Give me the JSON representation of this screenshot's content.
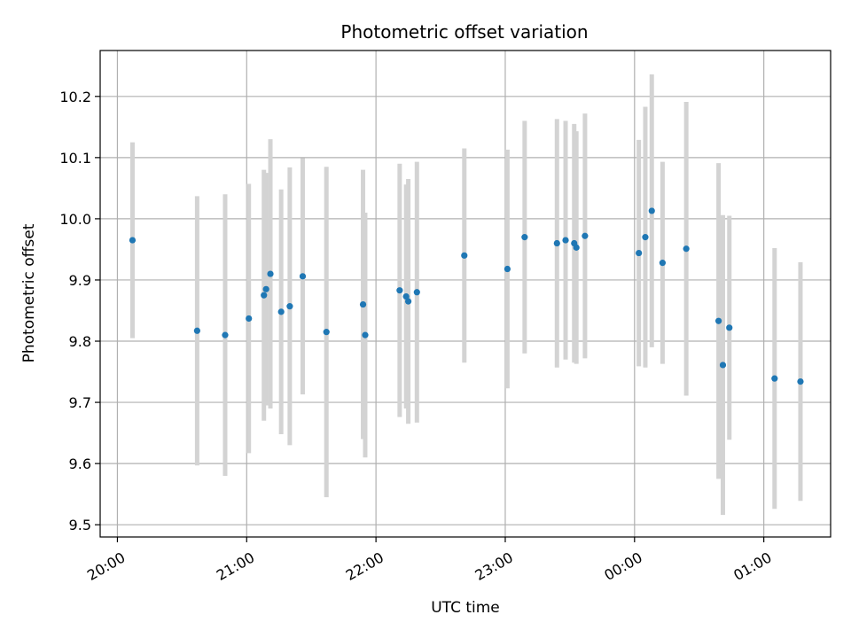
{
  "chart_data": {
    "type": "scatter",
    "title": "Photometric offset variation",
    "xlabel": "UTC time",
    "ylabel": "Photometric offset",
    "x_axis_kind": "time",
    "xlim": [
      "19:52",
      "01:31"
    ],
    "ylim": [
      9.48,
      10.275
    ],
    "grid": true,
    "x_ticks": [
      "20:00",
      "21:00",
      "22:00",
      "23:00",
      "00:00",
      "01:00"
    ],
    "y_ticks": [
      "9.5",
      "9.6",
      "9.7",
      "9.8",
      "9.9",
      "10.0",
      "10.1",
      "10.2"
    ],
    "colors": {
      "point": "#1f77b4",
      "errorbar": "#d3d3d3",
      "grid": "#b0b0b0"
    },
    "points": [
      {
        "x": "20:07",
        "y": 9.965,
        "yerr": 0.16
      },
      {
        "x": "20:37",
        "y": 9.817,
        "yerr": 0.22
      },
      {
        "x": "20:50",
        "y": 9.81,
        "yerr": 0.23
      },
      {
        "x": "21:01",
        "y": 9.837,
        "yerr": 0.22
      },
      {
        "x": "21:08",
        "y": 9.875,
        "yerr": 0.205
      },
      {
        "x": "21:09",
        "y": 9.885,
        "yerr": 0.19
      },
      {
        "x": "21:11",
        "y": 9.91,
        "yerr": 0.22
      },
      {
        "x": "21:16",
        "y": 9.848,
        "yerr": 0.2
      },
      {
        "x": "21:20",
        "y": 9.857,
        "yerr": 0.227
      },
      {
        "x": "21:26",
        "y": 9.906,
        "yerr": 0.193
      },
      {
        "x": "21:37",
        "y": 9.815,
        "yerr": 0.27
      },
      {
        "x": "21:54",
        "y": 9.86,
        "yerr": 0.22
      },
      {
        "x": "21:55",
        "y": 9.81,
        "yerr": 0.2
      },
      {
        "x": "22:11",
        "y": 9.883,
        "yerr": 0.207
      },
      {
        "x": "22:14",
        "y": 9.873,
        "yerr": 0.183
      },
      {
        "x": "22:15",
        "y": 9.865,
        "yerr": 0.2
      },
      {
        "x": "22:19",
        "y": 9.88,
        "yerr": 0.213
      },
      {
        "x": "22:41",
        "y": 9.94,
        "yerr": 0.175
      },
      {
        "x": "23:01",
        "y": 9.918,
        "yerr": 0.195
      },
      {
        "x": "23:09",
        "y": 9.97,
        "yerr": 0.19
      },
      {
        "x": "23:24",
        "y": 9.96,
        "yerr": 0.203
      },
      {
        "x": "23:28",
        "y": 9.965,
        "yerr": 0.195
      },
      {
        "x": "23:32",
        "y": 9.96,
        "yerr": 0.195
      },
      {
        "x": "23:33",
        "y": 9.953,
        "yerr": 0.19
      },
      {
        "x": "23:37",
        "y": 9.972,
        "yerr": 0.2
      },
      {
        "x": "00:02",
        "y": 9.944,
        "yerr": 0.185
      },
      {
        "x": "00:05",
        "y": 9.97,
        "yerr": 0.213
      },
      {
        "x": "00:08",
        "y": 10.013,
        "yerr": 0.223
      },
      {
        "x": "00:13",
        "y": 9.928,
        "yerr": 0.165
      },
      {
        "x": "00:24",
        "y": 9.951,
        "yerr": 0.24
      },
      {
        "x": "00:39",
        "y": 9.833,
        "yerr": 0.258
      },
      {
        "x": "00:41",
        "y": 9.761,
        "yerr": 0.245
      },
      {
        "x": "00:44",
        "y": 9.822,
        "yerr": 0.183
      },
      {
        "x": "01:05",
        "y": 9.739,
        "yerr": 0.213
      },
      {
        "x": "01:17",
        "y": 9.734,
        "yerr": 0.195
      }
    ]
  }
}
